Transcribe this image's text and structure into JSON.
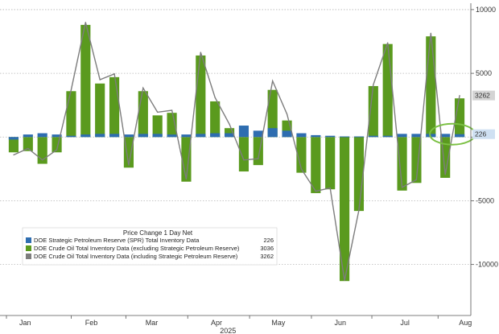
{
  "chart_data": {
    "type": "bar",
    "title": "",
    "xlabel": "",
    "ylabel": "",
    "ylim": [
      -14000,
      10500
    ],
    "y_ticks": [
      10000,
      5000,
      0,
      -5000,
      -10000
    ],
    "y_tick_labels": [
      "10000",
      "5000",
      "",
      "-5000",
      "-10000"
    ],
    "y_axis_position": "right",
    "grid": "horizontal dotted",
    "month_labels": [
      {
        "label": "Jan",
        "at_week": 1.3
      },
      {
        "label": "Feb",
        "at_week": 5.9
      },
      {
        "label": "Mar",
        "at_week": 10.1
      },
      {
        "label": "Apr",
        "at_week": 14.6
      },
      {
        "label": "May",
        "at_week": 18.9
      },
      {
        "label": "Jun",
        "at_week": 23.2
      },
      {
        "label": "Jul",
        "at_week": 27.7
      },
      {
        "label": "Aug",
        "at_week": 31.9
      }
    ],
    "year_label": {
      "label": "2025",
      "at_week": 15.4
    },
    "series": [
      {
        "name": "DOE Strategic Petroleum Reserve (SPR) Total Inventory Data",
        "color": "#2e6db0",
        "kind": "bar",
        "values": [
          -200,
          200,
          300,
          200,
          100,
          200,
          250,
          250,
          200,
          250,
          250,
          200,
          200,
          250,
          300,
          300,
          900,
          500,
          700,
          500,
          300,
          150,
          100,
          50,
          50,
          100,
          100,
          250,
          250,
          250,
          250,
          226
        ]
      },
      {
        "name": "DOE Crude Oil Total Inventory Data (excluding Strategic Petroleum Reserve)",
        "color": "#5a9a1e",
        "kind": "bar",
        "values": [
          -1200,
          -1100,
          -2100,
          -1200,
          3600,
          8800,
          4200,
          4700,
          -2400,
          3600,
          1700,
          1900,
          -3500,
          6400,
          2800,
          700,
          -2700,
          -2200,
          3700,
          1300,
          -2800,
          -4400,
          -4100,
          -11300,
          -5800,
          4000,
          7300,
          -4200,
          -3600,
          7900,
          -3200,
          3036
        ]
      },
      {
        "name": "DOE Crude Oil Total Inventory Data (including Strategic Petroleum Reserve)",
        "color": "#7d7d7d",
        "kind": "line",
        "values": [
          -1400,
          -900,
          -1800,
          -1000,
          3700,
          9000,
          4500,
          4950,
          -2200,
          3850,
          1950,
          2100,
          -3300,
          6650,
          3100,
          1000,
          -1800,
          -1700,
          4400,
          1800,
          -2500,
          -4250,
          -4000,
          -11250,
          -5750,
          4100,
          7400,
          -3950,
          -3350,
          8150,
          -2950,
          3262
        ]
      }
    ],
    "last_value_badges": [
      {
        "label": "3262",
        "value": 3262,
        "color": "#d4d4d4"
      },
      {
        "label": "226",
        "value": 226,
        "color": "#cfe0f2"
      }
    ],
    "legend": {
      "placement": "bottom-left",
      "title": "Price Change 1 Day Net",
      "entries": [
        {
          "text": "DOE Strategic Petroleum Reserve (SPR) Total Inventory Data",
          "value": "226",
          "color": "#2e6db0"
        },
        {
          "text": "DOE Crude Oil Total Inventory Data (excluding Strategic Petroleum Reserve)",
          "value": "3036",
          "color": "#5a9a1e"
        },
        {
          "text": "DOE Crude Oil Total Inventory Data (including Strategic Petroleum Reserve)",
          "value": "3262",
          "color": "#7d7d7d"
        }
      ]
    },
    "annotation": {
      "shape": "ellipse",
      "color": "#7bc043",
      "around_week": 30.5
    }
  }
}
